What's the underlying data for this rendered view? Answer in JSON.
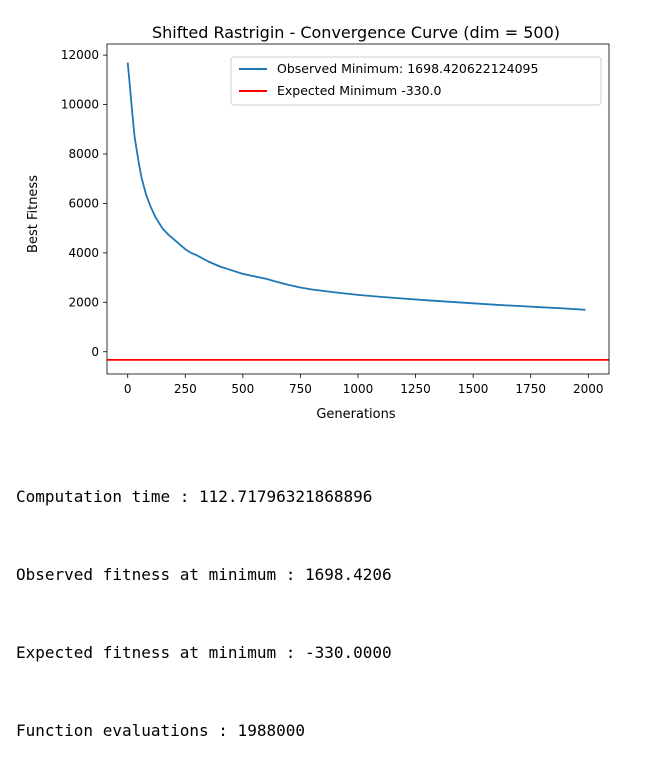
{
  "chart_data": {
    "type": "line",
    "title": "Shifted Rastrigin - Convergence Curve (dim = 500)",
    "xlabel": "Generations",
    "ylabel": "Best Fitness",
    "xlim": [
      -90,
      2090
    ],
    "ylim": [
      -900,
      12450
    ],
    "xticks": [
      0,
      250,
      500,
      750,
      1000,
      1250,
      1500,
      1750,
      2000
    ],
    "yticks": [
      0,
      2000,
      4000,
      6000,
      8000,
      10000,
      12000
    ],
    "legend_position": "upper right",
    "grid": false,
    "series": [
      {
        "name": "Observed Minimum: 1698.420622124095",
        "color": "#1f77b4",
        "x": [
          0,
          10,
          20,
          30,
          40,
          50,
          60,
          80,
          100,
          120,
          150,
          175,
          200,
          225,
          250,
          275,
          300,
          350,
          400,
          450,
          500,
          550,
          600,
          650,
          700,
          750,
          800,
          900,
          1000,
          1100,
          1200,
          1300,
          1400,
          1500,
          1600,
          1700,
          1800,
          1900,
          1988
        ],
        "y": [
          11700,
          10700,
          9650,
          8700,
          8100,
          7550,
          7050,
          6350,
          5850,
          5450,
          5000,
          4750,
          4550,
          4350,
          4150,
          4000,
          3900,
          3650,
          3450,
          3300,
          3150,
          3050,
          2950,
          2820,
          2700,
          2600,
          2520,
          2400,
          2300,
          2220,
          2150,
          2080,
          2020,
          1960,
          1900,
          1850,
          1800,
          1750,
          1698.42
        ]
      },
      {
        "name": "Expected Minimum -330.0",
        "color": "#ff0000",
        "hline": -330.0
      }
    ]
  },
  "output": {
    "lines": [
      "Computation time : 112.71796321868896",
      "Observed fitness at minimum : 1698.4206",
      "Expected fitness at minimum : -330.0000",
      "Function evaluations : 1988000"
    ]
  }
}
